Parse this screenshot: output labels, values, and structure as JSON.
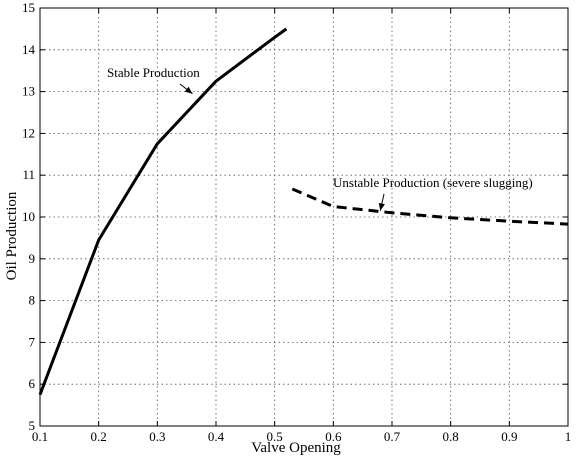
{
  "chart_data": {
    "type": "line",
    "xlabel": "Valve Opening",
    "ylabel": "Oil Production",
    "xlim": [
      0.1,
      1
    ],
    "ylim": [
      5,
      15
    ],
    "x_ticks": [
      "0.1",
      "0.2",
      "0.3",
      "0.4",
      "0.5",
      "0.6",
      "0.7",
      "0.8",
      "0.9",
      "1"
    ],
    "y_ticks": [
      "5",
      "6",
      "7",
      "8",
      "9",
      "10",
      "11",
      "12",
      "13",
      "14",
      "15"
    ],
    "grid": true,
    "series": [
      {
        "style": "solid",
        "color": "#000000",
        "x": [
          0.1,
          0.2,
          0.3,
          0.4,
          0.5,
          0.52
        ],
        "y": [
          5.75,
          9.45,
          11.75,
          13.25,
          14.3,
          14.5
        ]
      },
      {
        "style": "dashed",
        "color": "#000000",
        "x": [
          0.53,
          0.6,
          0.7,
          0.8,
          0.9,
          1.0
        ],
        "y": [
          10.67,
          10.25,
          10.1,
          9.98,
          9.9,
          9.83
        ]
      }
    ],
    "annotations": [
      {
        "text": "Stable Production",
        "arrow_to": [
          0.36,
          12.95
        ]
      },
      {
        "text": "Unstable Production (severe slugging)",
        "arrow_to": [
          0.68,
          10.15
        ]
      }
    ]
  }
}
